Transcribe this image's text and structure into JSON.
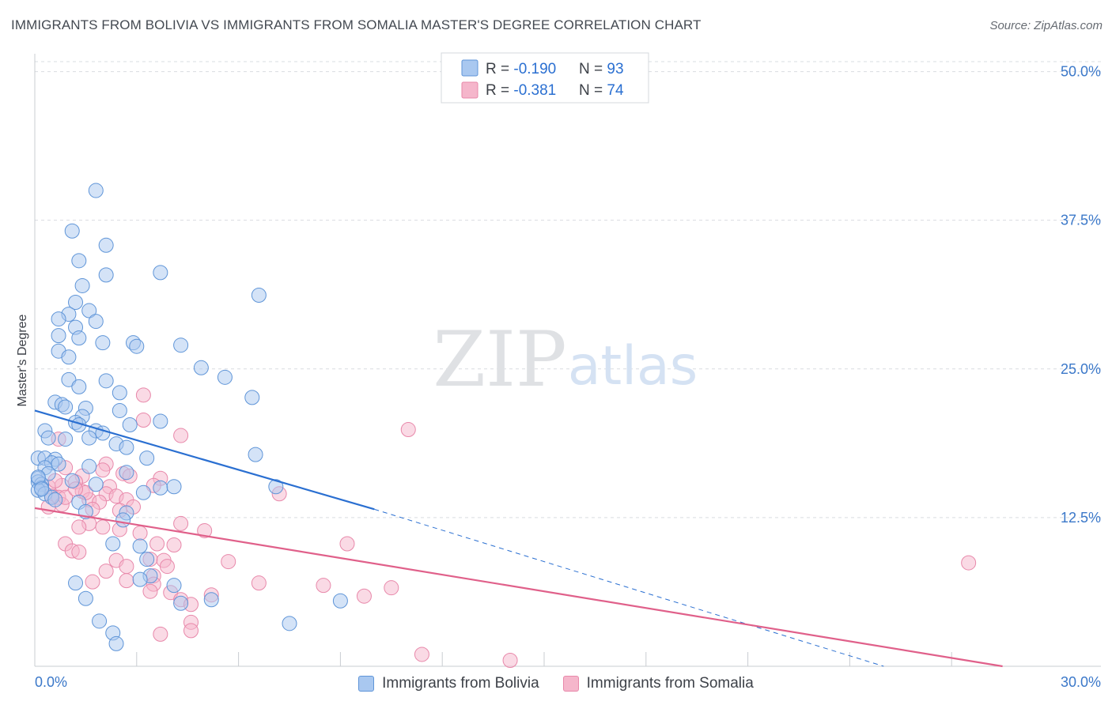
{
  "title": "IMMIGRANTS FROM BOLIVIA VS IMMIGRANTS FROM SOMALIA MASTER'S DEGREE CORRELATION CHART",
  "source": "Source: ZipAtlas.com",
  "watermark": {
    "zip": "ZIP",
    "atlas": "atlas"
  },
  "colors": {
    "bolivia_fill": "#a9c8f0",
    "bolivia_stroke": "#5f95d8",
    "bolivia_line": "#2a6fd1",
    "somalia_fill": "#f5b6cb",
    "somalia_stroke": "#e888aa",
    "somalia_line": "#e0608a",
    "axis_label": "#3b78c9",
    "grid": "#d9dce1"
  },
  "legend": {
    "rows": [
      {
        "r_label": "R = ",
        "r_value": "-0.190",
        "n_label": "N = ",
        "n_value": "93"
      },
      {
        "r_label": "R = ",
        "r_value": "-0.381",
        "n_label": "N = ",
        "n_value": "74"
      }
    ]
  },
  "chart_data": {
    "type": "scatter",
    "title": "IMMIGRANTS FROM BOLIVIA VS IMMIGRANTS FROM SOMALIA MASTER'S DEGREE CORRELATION CHART",
    "xlabel": "",
    "ylabel": "Master's Degree",
    "xlim": [
      0,
      30
    ],
    "ylim": [
      0,
      51.5
    ],
    "x_tick_labels": [
      "0.0%",
      "30.0%"
    ],
    "y_ticks": [
      12.5,
      25.0,
      37.5,
      50.0
    ],
    "y_tick_labels": [
      "12.5%",
      "25.0%",
      "37.5%",
      "50.0%"
    ],
    "grid": true,
    "legend_position": "top-center",
    "series": [
      {
        "name": "Immigrants from Bolivia",
        "r": -0.19,
        "n": 93,
        "trend": {
          "x0": 0.0,
          "y0": 21.5,
          "x1": 10.0,
          "y1": 13.2,
          "dashed_to_x": 25.0,
          "dashed_to_y": 0.0
        },
        "points": [
          [
            1.8,
            40.0
          ],
          [
            1.1,
            36.6
          ],
          [
            2.1,
            35.4
          ],
          [
            1.3,
            34.1
          ],
          [
            3.7,
            33.1
          ],
          [
            2.1,
            32.9
          ],
          [
            6.6,
            31.2
          ],
          [
            1.4,
            32.0
          ],
          [
            1.2,
            30.6
          ],
          [
            1.6,
            29.9
          ],
          [
            1.0,
            29.6
          ],
          [
            0.7,
            29.2
          ],
          [
            1.8,
            29.0
          ],
          [
            1.2,
            28.5
          ],
          [
            0.7,
            27.8
          ],
          [
            1.3,
            27.6
          ],
          [
            2.0,
            27.2
          ],
          [
            2.9,
            27.2
          ],
          [
            3.0,
            26.9
          ],
          [
            4.3,
            27.0
          ],
          [
            0.7,
            26.5
          ],
          [
            1.0,
            26.0
          ],
          [
            4.9,
            25.1
          ],
          [
            5.6,
            24.3
          ],
          [
            1.0,
            24.1
          ],
          [
            2.1,
            24.0
          ],
          [
            1.3,
            23.5
          ],
          [
            2.5,
            23.0
          ],
          [
            6.4,
            22.6
          ],
          [
            0.6,
            22.2
          ],
          [
            0.8,
            22.0
          ],
          [
            0.9,
            21.8
          ],
          [
            1.5,
            21.7
          ],
          [
            2.5,
            21.5
          ],
          [
            1.4,
            21.0
          ],
          [
            1.2,
            20.5
          ],
          [
            3.7,
            20.6
          ],
          [
            1.3,
            20.3
          ],
          [
            2.8,
            20.3
          ],
          [
            0.3,
            19.8
          ],
          [
            1.8,
            19.8
          ],
          [
            2.0,
            19.6
          ],
          [
            1.6,
            19.2
          ],
          [
            0.4,
            19.2
          ],
          [
            0.9,
            19.1
          ],
          [
            2.4,
            18.7
          ],
          [
            2.7,
            18.4
          ],
          [
            6.5,
            17.8
          ],
          [
            3.3,
            17.5
          ],
          [
            0.1,
            17.5
          ],
          [
            0.3,
            17.5
          ],
          [
            0.6,
            17.4
          ],
          [
            0.5,
            17.1
          ],
          [
            0.7,
            17.0
          ],
          [
            1.6,
            16.8
          ],
          [
            0.3,
            16.7
          ],
          [
            2.7,
            16.3
          ],
          [
            0.4,
            16.2
          ],
          [
            0.1,
            15.8
          ],
          [
            0.1,
            15.5
          ],
          [
            0.2,
            15.3
          ],
          [
            1.8,
            15.3
          ],
          [
            0.2,
            15.0
          ],
          [
            3.7,
            15.0
          ],
          [
            4.1,
            15.1
          ],
          [
            7.1,
            15.1
          ],
          [
            0.1,
            14.8
          ],
          [
            0.3,
            14.5
          ],
          [
            3.2,
            14.6
          ],
          [
            0.5,
            14.2
          ],
          [
            0.6,
            14.0
          ],
          [
            1.3,
            13.8
          ],
          [
            1.5,
            13.0
          ],
          [
            2.7,
            12.9
          ],
          [
            2.6,
            12.3
          ],
          [
            2.3,
            10.3
          ],
          [
            3.1,
            10.1
          ],
          [
            3.3,
            9.0
          ],
          [
            3.4,
            7.6
          ],
          [
            3.1,
            7.3
          ],
          [
            1.2,
            7.0
          ],
          [
            4.1,
            6.8
          ],
          [
            1.5,
            5.7
          ],
          [
            4.3,
            5.3
          ],
          [
            5.2,
            5.6
          ],
          [
            9.0,
            5.5
          ],
          [
            1.9,
            3.8
          ],
          [
            7.5,
            3.6
          ],
          [
            2.3,
            2.8
          ],
          [
            2.4,
            1.9
          ],
          [
            0.1,
            15.9
          ],
          [
            0.2,
            14.9
          ],
          [
            1.1,
            15.6
          ]
        ]
      },
      {
        "name": "Immigrants from Somalia",
        "r": -0.381,
        "n": 74,
        "trend": {
          "x0": 0.0,
          "y0": 13.3,
          "x1": 28.5,
          "y1": 0.0
        },
        "points": [
          [
            3.2,
            22.8
          ],
          [
            3.2,
            20.7
          ],
          [
            11.0,
            19.9
          ],
          [
            4.3,
            19.4
          ],
          [
            0.7,
            19.1
          ],
          [
            2.1,
            17.0
          ],
          [
            0.9,
            16.7
          ],
          [
            2.0,
            16.5
          ],
          [
            2.6,
            16.2
          ],
          [
            1.4,
            16.0
          ],
          [
            2.8,
            16.0
          ],
          [
            3.7,
            15.8
          ],
          [
            1.2,
            15.5
          ],
          [
            0.8,
            15.2
          ],
          [
            2.2,
            15.1
          ],
          [
            3.5,
            15.2
          ],
          [
            0.4,
            15.1
          ],
          [
            1.4,
            14.7
          ],
          [
            0.5,
            14.3
          ],
          [
            2.1,
            14.5
          ],
          [
            2.4,
            14.3
          ],
          [
            0.7,
            14.2
          ],
          [
            1.6,
            14.0
          ],
          [
            1.9,
            13.8
          ],
          [
            2.7,
            14.0
          ],
          [
            0.8,
            13.6
          ],
          [
            1.7,
            13.2
          ],
          [
            7.2,
            14.5
          ],
          [
            0.4,
            13.4
          ],
          [
            2.5,
            13.1
          ],
          [
            2.9,
            13.4
          ],
          [
            1.6,
            12.0
          ],
          [
            2.0,
            11.7
          ],
          [
            4.3,
            12.0
          ],
          [
            1.3,
            11.7
          ],
          [
            2.5,
            11.5
          ],
          [
            5.0,
            11.4
          ],
          [
            3.1,
            11.2
          ],
          [
            3.6,
            10.3
          ],
          [
            4.1,
            10.2
          ],
          [
            0.9,
            10.3
          ],
          [
            9.2,
            10.3
          ],
          [
            1.1,
            9.7
          ],
          [
            1.3,
            9.6
          ],
          [
            2.4,
            8.9
          ],
          [
            3.4,
            9.0
          ],
          [
            3.8,
            8.9
          ],
          [
            5.7,
            8.8
          ],
          [
            2.7,
            8.4
          ],
          [
            3.9,
            8.4
          ],
          [
            27.5,
            8.7
          ],
          [
            3.5,
            7.6
          ],
          [
            2.7,
            7.2
          ],
          [
            1.7,
            7.1
          ],
          [
            3.5,
            6.9
          ],
          [
            6.6,
            7.0
          ],
          [
            8.5,
            6.8
          ],
          [
            10.5,
            6.6
          ],
          [
            3.4,
            6.3
          ],
          [
            4.0,
            6.2
          ],
          [
            5.2,
            6.0
          ],
          [
            9.7,
            5.9
          ],
          [
            4.3,
            5.6
          ],
          [
            4.6,
            5.2
          ],
          [
            4.6,
            3.7
          ],
          [
            4.6,
            3.0
          ],
          [
            3.7,
            2.7
          ],
          [
            11.4,
            1.0
          ],
          [
            14.0,
            0.5
          ],
          [
            2.1,
            8.0
          ],
          [
            1.5,
            14.6
          ],
          [
            0.9,
            14.2
          ],
          [
            0.6,
            15.6
          ],
          [
            1.2,
            14.9
          ]
        ]
      }
    ]
  }
}
